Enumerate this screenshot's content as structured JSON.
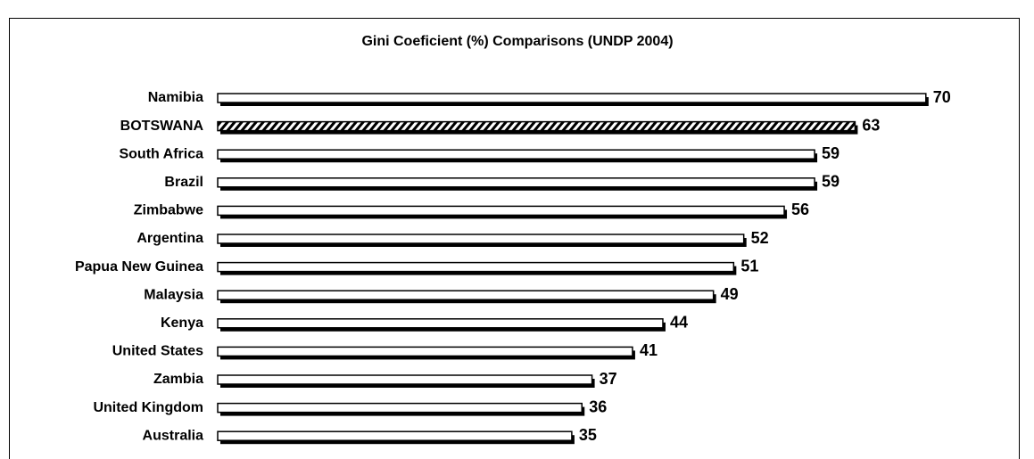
{
  "chart_data": {
    "type": "bar",
    "orientation": "horizontal",
    "title": "Gini Coeficient (%)  Comparisons (UNDP 2004)",
    "categories": [
      "Namibia",
      "BOTSWANA",
      "South Africa",
      "Brazil",
      "Zimbabwe",
      "Argentina",
      "Papua New Guinea",
      "Malaysia",
      "Kenya",
      "United States",
      "Zambia",
      "United Kingdom",
      "Australia"
    ],
    "values": [
      70,
      63,
      59,
      59,
      56,
      52,
      51,
      49,
      44,
      41,
      37,
      36,
      35
    ],
    "color": "#ffffff",
    "hatched": [
      false,
      true,
      false,
      false,
      false,
      false,
      false,
      false,
      false,
      false,
      false,
      false,
      false
    ]
  }
}
